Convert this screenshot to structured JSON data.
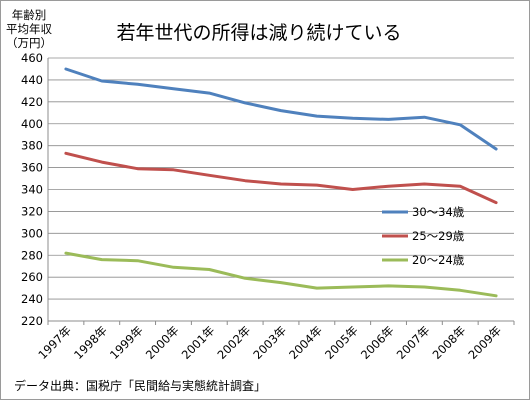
{
  "chart_data": {
    "type": "line",
    "title": "若年世代の所得は減り続けている",
    "ylabel_lines": [
      "年齢別",
      "平均年収",
      "（万円）"
    ],
    "source": "データ出典：国税庁「民間給与実態統計調査」",
    "ylim": [
      220,
      460
    ],
    "yticks": [
      220,
      240,
      260,
      280,
      300,
      320,
      340,
      360,
      380,
      400,
      420,
      440,
      460
    ],
    "grid": true,
    "legend_position": "right",
    "categories": [
      "1997年",
      "1998年",
      "1999年",
      "2000年",
      "2001年",
      "2002年",
      "2003年",
      "2004年",
      "2005年",
      "2006年",
      "2007年",
      "2008年",
      "2009年"
    ],
    "series": [
      {
        "name": "30〜34歳",
        "color": "#4f81bd",
        "values": [
          450,
          439,
          436,
          432,
          428,
          419,
          412,
          407,
          405,
          404,
          406,
          399,
          377
        ]
      },
      {
        "name": "25〜29歳",
        "color": "#c0504d",
        "values": [
          373,
          365,
          359,
          358,
          353,
          348,
          345,
          344,
          340,
          343,
          345,
          343,
          328
        ]
      },
      {
        "name": "20〜24歳",
        "color": "#9bbb59",
        "values": [
          282,
          276,
          275,
          269,
          267,
          259,
          255,
          250,
          251,
          252,
          251,
          248,
          243
        ]
      }
    ]
  }
}
